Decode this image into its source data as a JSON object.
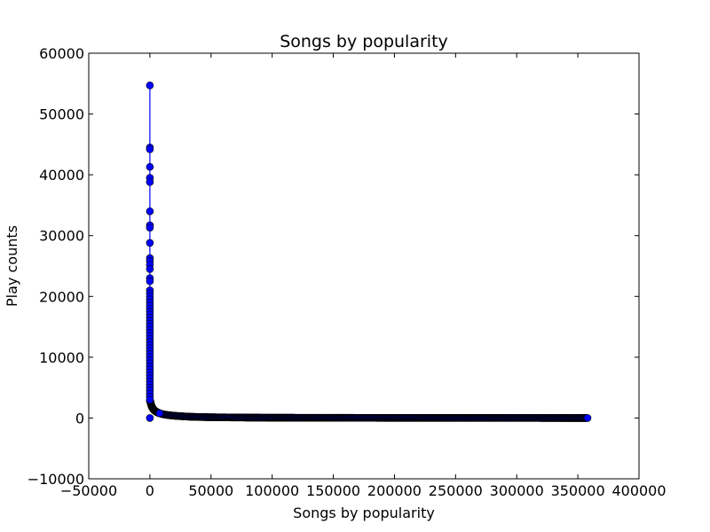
{
  "chart_data": {
    "type": "line",
    "title": "Songs by popularity",
    "xlabel": "Songs by popularity",
    "ylabel": "Play counts",
    "xlim": [
      -50000,
      400000
    ],
    "ylim": [
      -10000,
      60000
    ],
    "xticks": [
      -50000,
      0,
      50000,
      100000,
      150000,
      200000,
      250000,
      300000,
      350000,
      400000
    ],
    "yticks": [
      -10000,
      0,
      10000,
      20000,
      30000,
      40000,
      50000,
      60000
    ],
    "xtick_labels": [
      "−50000",
      "0",
      "50000",
      "100000",
      "150000",
      "200000",
      "250000",
      "300000",
      "350000",
      "400000"
    ],
    "ytick_labels": [
      "−10000",
      "0",
      "10000",
      "20000",
      "30000",
      "40000",
      "50000",
      "60000"
    ],
    "grid": false,
    "legend": "none",
    "series_color": "#0000ff",
    "marker": "circle",
    "x_max": 358000,
    "outlier_points": [
      [
        0,
        54700
      ],
      [
        0,
        44500
      ],
      [
        0,
        44200
      ],
      [
        0,
        41300
      ],
      [
        0,
        39500
      ],
      [
        0,
        38800
      ],
      [
        0,
        34000
      ],
      [
        0,
        31700
      ],
      [
        0,
        31300
      ],
      [
        0,
        28800
      ],
      [
        0,
        26300
      ],
      [
        0,
        25800
      ],
      [
        0,
        25200
      ],
      [
        0,
        24500
      ],
      [
        0,
        23000
      ],
      [
        0,
        22500
      ],
      [
        0,
        21000
      ],
      [
        0,
        20500
      ],
      [
        0,
        20000
      ],
      [
        0,
        19500
      ],
      [
        0,
        19000
      ],
      [
        0,
        18500
      ],
      [
        0,
        18000
      ],
      [
        0,
        17500
      ],
      [
        0,
        17000
      ],
      [
        0,
        16500
      ],
      [
        0,
        16000
      ],
      [
        0,
        15500
      ],
      [
        0,
        15000
      ],
      [
        0,
        14500
      ],
      [
        0,
        14000
      ],
      [
        0,
        13500
      ],
      [
        0,
        13000
      ],
      [
        0,
        12500
      ],
      [
        0,
        12000
      ],
      [
        0,
        11500
      ],
      [
        0,
        11000
      ],
      [
        0,
        10500
      ],
      [
        0,
        10000
      ],
      [
        0,
        9500
      ],
      [
        0,
        9000
      ],
      [
        0,
        8500
      ],
      [
        0,
        8000
      ],
      [
        0,
        7500
      ],
      [
        0,
        7000
      ],
      [
        0,
        6500
      ],
      [
        0,
        6000
      ],
      [
        0,
        5500
      ],
      [
        0,
        5000
      ],
      [
        0,
        4500
      ],
      [
        0,
        4000
      ],
      [
        0,
        3500
      ],
      [
        0,
        3000
      ],
      [
        0,
        0
      ]
    ],
    "tail_points": [
      [
        300,
        2800
      ],
      [
        600,
        2500
      ],
      [
        1000,
        2200
      ],
      [
        1500,
        1900
      ],
      [
        2000,
        1700
      ],
      [
        3000,
        1400
      ],
      [
        4000,
        1200
      ],
      [
        5000,
        1050
      ],
      [
        6000,
        950
      ],
      [
        7000,
        850
      ],
      [
        8000,
        780
      ],
      [
        10000,
        650
      ],
      [
        12000,
        570
      ],
      [
        15000,
        480
      ],
      [
        18000,
        410
      ],
      [
        22000,
        340
      ],
      [
        26000,
        290
      ],
      [
        30000,
        240
      ],
      [
        35000,
        200
      ],
      [
        40000,
        170
      ],
      [
        50000,
        130
      ],
      [
        60000,
        105
      ],
      [
        80000,
        75
      ],
      [
        100000,
        55
      ],
      [
        130000,
        40
      ],
      [
        160000,
        30
      ],
      [
        200000,
        20
      ],
      [
        250000,
        14
      ],
      [
        300000,
        8
      ],
      [
        358000,
        3
      ]
    ]
  }
}
